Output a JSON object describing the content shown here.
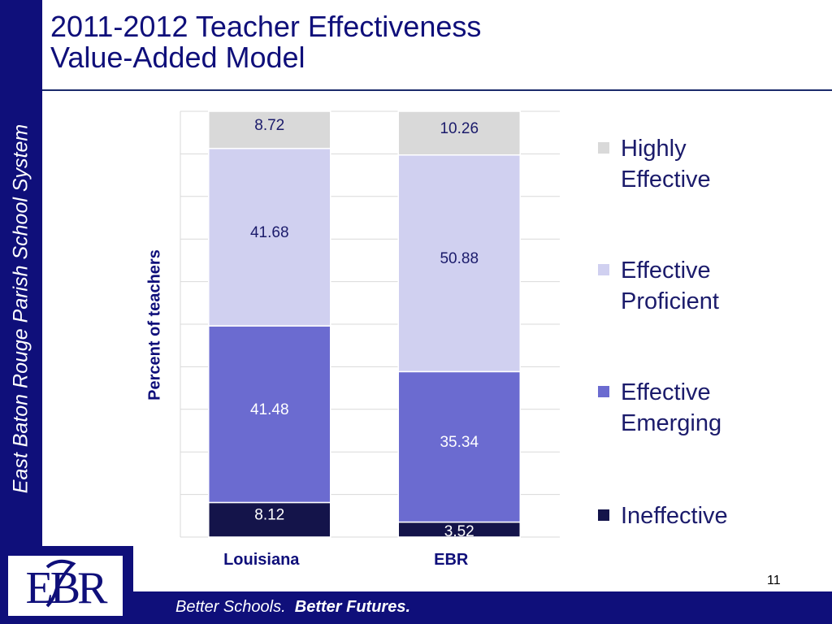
{
  "sidebar": {
    "text": "East Baton Rouge Parish School System"
  },
  "header": {
    "title_line1": "2011-2012 Teacher Effectiveness",
    "title_line2": "Value-Added Model"
  },
  "footer": {
    "text_regular": "Better Schools.",
    "text_bold": "Better Futures.",
    "page_number": "11"
  },
  "logo": {
    "letters": "EBR"
  },
  "colors": {
    "brand": "#0f0f7a",
    "highly_effective": "#d9d9d9",
    "effective_proficient": "#d0d0f0",
    "effective_emerging": "#6b6bd0",
    "ineffective": "#14144a"
  },
  "chart_data": {
    "type": "bar",
    "stacked": true,
    "categories": [
      "Louisiana",
      "EBR"
    ],
    "ylabel": "Percent of teachers",
    "ylim": [
      0,
      100
    ],
    "grid": true,
    "legend_position": "right",
    "series": [
      {
        "name": "Ineffective",
        "values": [
          8.12,
          3.52
        ],
        "labels": [
          "8.12",
          "3.52"
        ],
        "color": "#14144a",
        "label_color": "#ffffff"
      },
      {
        "name": "Effective Emerging",
        "values": [
          41.48,
          35.34
        ],
        "labels": [
          "41.48",
          "35.34"
        ],
        "color": "#6b6bd0",
        "label_color": "#ffffff"
      },
      {
        "name": "Effective Proficient",
        "values": [
          41.68,
          50.88
        ],
        "labels": [
          "41.68",
          "50.88"
        ],
        "color": "#d0d0f0",
        "label_color": "#1b1b6b"
      },
      {
        "name": "Highly Effective",
        "values": [
          8.72,
          10.26
        ],
        "labels": [
          "8.72",
          "10.26"
        ],
        "color": "#d9d9d9",
        "label_color": "#1b1b6b"
      }
    ],
    "legend_order": [
      "Highly Effective",
      "Effective Proficient",
      "Effective Emerging",
      "Ineffective"
    ],
    "legend_labels": {
      "Highly Effective": [
        "Highly",
        "Effective"
      ],
      "Effective Proficient": [
        "Effective",
        "Proficient"
      ],
      "Effective Emerging": [
        "Effective",
        "Emerging"
      ],
      "Ineffective": [
        "Ineffective"
      ]
    }
  }
}
